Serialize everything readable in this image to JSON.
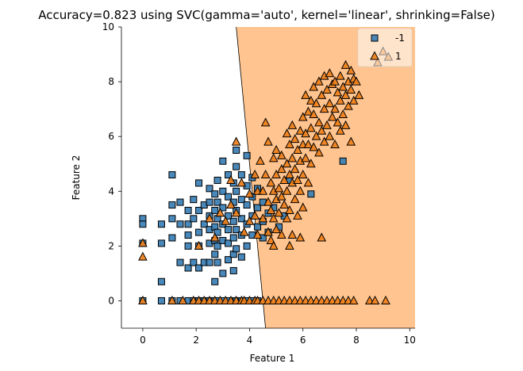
{
  "chart_data": {
    "type": "scatter",
    "title": "Accuracy=0.823 using SVC(gamma='auto', kernel='linear', shrinking=False)",
    "xlabel": "Feature 1",
    "ylabel": "Feature 2",
    "xlim": [
      -0.8,
      10.2
    ],
    "ylim": [
      -1.0,
      10.0
    ],
    "xticks": [
      0,
      2,
      4,
      6,
      8,
      10
    ],
    "yticks": [
      0,
      2,
      4,
      6,
      8,
      10
    ],
    "grid": false,
    "legend_position": "top-right",
    "decision_boundary": {
      "line": [
        [
          3.5,
          10.0
        ],
        [
          4.6,
          -1.0
        ]
      ],
      "region_colors": {
        "-1": "#ffffff",
        "1": "#ffc48f"
      }
    },
    "series": [
      {
        "name": "-1",
        "marker": "square",
        "color": "#3a7eb4",
        "points": [
          [
            0,
            3.0
          ],
          [
            0,
            2.8
          ],
          [
            0,
            2.1
          ],
          [
            0,
            0
          ],
          [
            0.7,
            2.8
          ],
          [
            0.7,
            2.1
          ],
          [
            0.7,
            0.7
          ],
          [
            0.7,
            0
          ],
          [
            1.1,
            4.6
          ],
          [
            1.1,
            3.5
          ],
          [
            1.1,
            3.0
          ],
          [
            1.1,
            2.3
          ],
          [
            1.1,
            0
          ],
          [
            1.4,
            3.6
          ],
          [
            1.4,
            2.8
          ],
          [
            1.4,
            1.4
          ],
          [
            1.4,
            0
          ],
          [
            1.7,
            3.3
          ],
          [
            1.7,
            2.8
          ],
          [
            1.7,
            2.4
          ],
          [
            1.7,
            2.0
          ],
          [
            1.7,
            1.2
          ],
          [
            1.7,
            0
          ],
          [
            1.9,
            3.7
          ],
          [
            1.9,
            3.0
          ],
          [
            1.9,
            1.4
          ],
          [
            1.9,
            0
          ],
          [
            2.1,
            4.3
          ],
          [
            2.1,
            3.3
          ],
          [
            2.1,
            2.5
          ],
          [
            2.1,
            2.0
          ],
          [
            2.1,
            1.2
          ],
          [
            2.1,
            0
          ],
          [
            2.3,
            3.5
          ],
          [
            2.3,
            2.8
          ],
          [
            2.3,
            1.4
          ],
          [
            2.3,
            0
          ],
          [
            2.5,
            4.1
          ],
          [
            2.5,
            3.6
          ],
          [
            2.5,
            3.1
          ],
          [
            2.5,
            2.6
          ],
          [
            2.5,
            2.1
          ],
          [
            2.5,
            1.4
          ],
          [
            2.5,
            0
          ],
          [
            2.7,
            3.9
          ],
          [
            2.7,
            3.3
          ],
          [
            2.7,
            2.7
          ],
          [
            2.7,
            2.2
          ],
          [
            2.7,
            1.7
          ],
          [
            2.7,
            0.7
          ],
          [
            2.7,
            0
          ],
          [
            2.8,
            4.4
          ],
          [
            2.8,
            3.6
          ],
          [
            2.8,
            3.0
          ],
          [
            2.8,
            2.5
          ],
          [
            2.8,
            2.0
          ],
          [
            2.8,
            1.4
          ],
          [
            2.8,
            0
          ],
          [
            3.0,
            5.1
          ],
          [
            3.0,
            4.0
          ],
          [
            3.0,
            3.4
          ],
          [
            3.0,
            2.8
          ],
          [
            3.0,
            2.2
          ],
          [
            3.0,
            1.0
          ],
          [
            3.0,
            0
          ],
          [
            3.2,
            4.6
          ],
          [
            3.2,
            3.8
          ],
          [
            3.2,
            3.1
          ],
          [
            3.2,
            2.6
          ],
          [
            3.2,
            2.1
          ],
          [
            3.2,
            1.5
          ],
          [
            3.2,
            0
          ],
          [
            3.4,
            4.3
          ],
          [
            3.4,
            3.6
          ],
          [
            3.4,
            2.9
          ],
          [
            3.4,
            2.3
          ],
          [
            3.4,
            1.7
          ],
          [
            3.4,
            1.1
          ],
          [
            3.4,
            0
          ],
          [
            3.5,
            5.5
          ],
          [
            3.5,
            4.9
          ],
          [
            3.5,
            4.0
          ],
          [
            3.5,
            3.3
          ],
          [
            3.5,
            2.6
          ],
          [
            3.5,
            1.9
          ],
          [
            3.5,
            0
          ],
          [
            3.7,
            4.6
          ],
          [
            3.7,
            3.7
          ],
          [
            3.7,
            3.0
          ],
          [
            3.7,
            2.4
          ],
          [
            3.7,
            1.6
          ],
          [
            3.7,
            0
          ],
          [
            3.9,
            5.3
          ],
          [
            3.9,
            4.2
          ],
          [
            3.9,
            3.5
          ],
          [
            3.9,
            2.8
          ],
          [
            3.9,
            2.0
          ],
          [
            3.9,
            0
          ],
          [
            4.1,
            4.5
          ],
          [
            4.1,
            3.8
          ],
          [
            4.1,
            3.1
          ],
          [
            4.1,
            2.4
          ],
          [
            4.1,
            0
          ],
          [
            4.3,
            4.1
          ],
          [
            4.3,
            3.4
          ],
          [
            4.3,
            2.7
          ],
          [
            4.3,
            0
          ],
          [
            4.5,
            3.6
          ],
          [
            4.5,
            2.9
          ],
          [
            4.5,
            2.3
          ],
          [
            4.7,
            3.2
          ],
          [
            4.7,
            2.5
          ],
          [
            4.9,
            3.4
          ],
          [
            5.1,
            2.7
          ],
          [
            5.3,
            3.1
          ],
          [
            5.5,
            4.4
          ],
          [
            6.3,
            3.9
          ],
          [
            7.5,
            5.1
          ]
        ]
      },
      {
        "name": "1",
        "marker": "triangle",
        "color": "#ef7f1a",
        "points": [
          [
            0,
            2.1
          ],
          [
            0,
            1.6
          ],
          [
            0,
            0
          ],
          [
            1.1,
            0
          ],
          [
            1.5,
            0
          ],
          [
            1.9,
            0
          ],
          [
            2.1,
            2.0
          ],
          [
            2.1,
            0
          ],
          [
            2.3,
            0
          ],
          [
            2.5,
            3.0
          ],
          [
            2.5,
            0
          ],
          [
            2.7,
            2.3
          ],
          [
            2.7,
            0
          ],
          [
            2.9,
            3.2
          ],
          [
            2.9,
            0
          ],
          [
            3.1,
            2.9
          ],
          [
            3.1,
            0
          ],
          [
            3.3,
            4.4
          ],
          [
            3.3,
            3.5
          ],
          [
            3.3,
            0
          ],
          [
            3.5,
            5.8
          ],
          [
            3.5,
            3.2
          ],
          [
            3.5,
            0
          ],
          [
            3.7,
            4.3
          ],
          [
            3.7,
            0
          ],
          [
            3.8,
            2.5
          ],
          [
            3.8,
            0
          ],
          [
            4.0,
            3.9
          ],
          [
            4.0,
            2.9
          ],
          [
            4.0,
            0
          ],
          [
            4.2,
            4.6
          ],
          [
            4.2,
            3.1
          ],
          [
            4.2,
            0
          ],
          [
            4.3,
            4.0
          ],
          [
            4.3,
            2.4
          ],
          [
            4.3,
            0
          ],
          [
            4.4,
            5.1
          ],
          [
            4.5,
            4.0
          ],
          [
            4.5,
            3.0
          ],
          [
            4.5,
            0
          ],
          [
            4.6,
            4.6
          ],
          [
            4.6,
            6.5
          ],
          [
            4.7,
            5.8
          ],
          [
            4.7,
            3.6
          ],
          [
            4.7,
            2.5
          ],
          [
            4.7,
            0
          ],
          [
            4.8,
            4.3
          ],
          [
            4.8,
            3.3
          ],
          [
            4.8,
            2.2
          ],
          [
            4.9,
            5.2
          ],
          [
            4.9,
            4.0
          ],
          [
            4.9,
            3.0
          ],
          [
            4.9,
            0
          ],
          [
            5.0,
            5.5
          ],
          [
            5.0,
            4.6
          ],
          [
            5.0,
            3.7
          ],
          [
            5.0,
            2.6
          ],
          [
            5.1,
            4.1
          ],
          [
            5.1,
            3.2
          ],
          [
            5.1,
            0
          ],
          [
            5.2,
            5.3
          ],
          [
            5.2,
            4.8
          ],
          [
            5.2,
            3.8
          ],
          [
            5.2,
            2.4
          ],
          [
            5.3,
            4.4
          ],
          [
            5.3,
            3.5
          ],
          [
            5.3,
            0
          ],
          [
            5.4,
            6.1
          ],
          [
            5.4,
            5.0
          ],
          [
            5.4,
            4.0
          ],
          [
            5.4,
            3.0
          ],
          [
            5.5,
            5.7
          ],
          [
            5.5,
            4.6
          ],
          [
            5.5,
            3.3
          ],
          [
            5.5,
            0
          ],
          [
            5.6,
            6.4
          ],
          [
            5.6,
            5.2
          ],
          [
            5.6,
            4.3
          ],
          [
            5.6,
            2.4
          ],
          [
            5.7,
            5.9
          ],
          [
            5.7,
            4.8
          ],
          [
            5.7,
            3.7
          ],
          [
            5.7,
            0
          ],
          [
            5.8,
            5.5
          ],
          [
            5.8,
            4.4
          ],
          [
            5.8,
            3.1
          ],
          [
            5.9,
            6.2
          ],
          [
            5.9,
            5.1
          ],
          [
            5.9,
            4.0
          ],
          [
            5.9,
            0
          ],
          [
            6.0,
            6.7
          ],
          [
            6.0,
            5.7
          ],
          [
            6.0,
            4.6
          ],
          [
            6.0,
            3.4
          ],
          [
            6.1,
            7.5
          ],
          [
            6.1,
            6.1
          ],
          [
            6.1,
            5.2
          ],
          [
            6.1,
            0
          ],
          [
            6.2,
            6.9
          ],
          [
            6.2,
            5.7
          ],
          [
            6.2,
            4.3
          ],
          [
            6.3,
            7.3
          ],
          [
            6.3,
            6.3
          ],
          [
            6.3,
            5.0
          ],
          [
            6.3,
            0
          ],
          [
            6.4,
            7.8
          ],
          [
            6.4,
            6.8
          ],
          [
            6.4,
            5.6
          ],
          [
            6.5,
            7.2
          ],
          [
            6.5,
            6.0
          ],
          [
            6.5,
            0
          ],
          [
            6.6,
            8.0
          ],
          [
            6.6,
            6.5
          ],
          [
            6.6,
            5.4
          ],
          [
            6.7,
            7.5
          ],
          [
            6.7,
            6.2
          ],
          [
            6.7,
            2.3
          ],
          [
            6.7,
            0
          ],
          [
            6.8,
            8.2
          ],
          [
            6.8,
            7.0
          ],
          [
            6.8,
            5.8
          ],
          [
            6.9,
            7.7
          ],
          [
            6.9,
            6.4
          ],
          [
            6.9,
            0
          ],
          [
            7.0,
            8.3
          ],
          [
            7.0,
            7.2
          ],
          [
            7.0,
            6.0
          ],
          [
            7.1,
            7.9
          ],
          [
            7.1,
            6.7
          ],
          [
            7.1,
            0
          ],
          [
            7.2,
            8.0
          ],
          [
            7.2,
            7.0
          ],
          [
            7.2,
            5.7
          ],
          [
            7.3,
            7.6
          ],
          [
            7.3,
            6.5
          ],
          [
            7.3,
            0
          ],
          [
            7.4,
            8.2
          ],
          [
            7.4,
            7.3
          ],
          [
            7.4,
            6.2
          ],
          [
            7.5,
            7.8
          ],
          [
            7.5,
            6.8
          ],
          [
            7.5,
            0
          ],
          [
            7.6,
            8.6
          ],
          [
            7.6,
            7.5
          ],
          [
            7.6,
            6.4
          ],
          [
            7.7,
            8.0
          ],
          [
            7.7,
            7.1
          ],
          [
            7.7,
            0
          ],
          [
            7.8,
            8.4
          ],
          [
            7.8,
            7.7
          ],
          [
            7.8,
            5.8
          ],
          [
            7.9,
            8.1
          ],
          [
            7.9,
            7.3
          ],
          [
            7.9,
            0
          ],
          [
            8.0,
            8.0
          ],
          [
            8.1,
            7.5
          ],
          [
            8.5,
            0
          ],
          [
            8.7,
            0
          ],
          [
            9.1,
            0
          ],
          [
            8.8,
            8.7
          ],
          [
            9.0,
            9.1
          ],
          [
            9.2,
            8.9
          ],
          [
            5.9,
            2.3
          ],
          [
            5.5,
            2.0
          ],
          [
            4.9,
            2.0
          ]
        ]
      }
    ]
  }
}
